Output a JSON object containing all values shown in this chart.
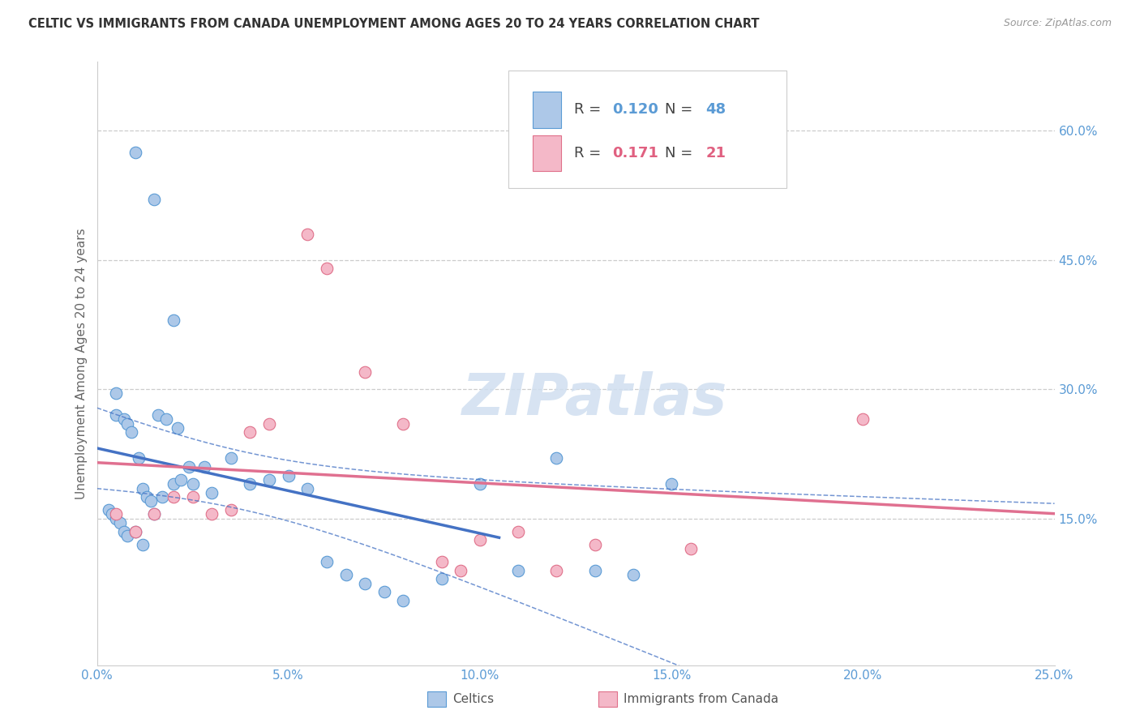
{
  "title": "CELTIC VS IMMIGRANTS FROM CANADA UNEMPLOYMENT AMONG AGES 20 TO 24 YEARS CORRELATION CHART",
  "source": "Source: ZipAtlas.com",
  "ylabel": "Unemployment Among Ages 20 to 24 years",
  "xlim": [
    0.0,
    0.25
  ],
  "ylim": [
    -0.02,
    0.68
  ],
  "xtick_labels": [
    "0.0%",
    "5.0%",
    "10.0%",
    "15.0%",
    "20.0%",
    "25.0%"
  ],
  "xtick_vals": [
    0.0,
    0.05,
    0.1,
    0.15,
    0.2,
    0.25
  ],
  "ytick_labels": [
    "15.0%",
    "30.0%",
    "45.0%",
    "60.0%"
  ],
  "ytick_vals": [
    0.15,
    0.3,
    0.45,
    0.6
  ],
  "grid_color": "#cccccc",
  "background_color": "#ffffff",
  "celtics_color": "#adc8e8",
  "celtics_edge_color": "#5b9bd5",
  "immigrants_color": "#f4b8c8",
  "immigrants_edge_color": "#e0708a",
  "celtics_line_color": "#4472c4",
  "immigrants_line_color": "#e07090",
  "celtics_R": 0.12,
  "celtics_N": 48,
  "immigrants_R": 0.171,
  "immigrants_N": 21,
  "celtics_x": [
    0.01,
    0.015,
    0.02,
    0.005,
    0.005,
    0.007,
    0.008,
    0.009,
    0.011,
    0.012,
    0.013,
    0.014,
    0.016,
    0.018,
    0.021,
    0.024,
    0.003,
    0.004,
    0.005,
    0.006,
    0.007,
    0.008,
    0.01,
    0.012,
    0.015,
    0.017,
    0.02,
    0.022,
    0.025,
    0.028,
    0.03,
    0.035,
    0.04,
    0.045,
    0.05,
    0.055,
    0.06,
    0.065,
    0.07,
    0.075,
    0.08,
    0.09,
    0.1,
    0.11,
    0.12,
    0.13,
    0.14,
    0.15
  ],
  "celtics_y": [
    0.575,
    0.52,
    0.38,
    0.295,
    0.27,
    0.265,
    0.26,
    0.25,
    0.22,
    0.185,
    0.175,
    0.17,
    0.27,
    0.265,
    0.255,
    0.21,
    0.16,
    0.155,
    0.15,
    0.145,
    0.135,
    0.13,
    0.135,
    0.12,
    0.155,
    0.175,
    0.19,
    0.195,
    0.19,
    0.21,
    0.18,
    0.22,
    0.19,
    0.195,
    0.2,
    0.185,
    0.1,
    0.085,
    0.075,
    0.065,
    0.055,
    0.08,
    0.19,
    0.09,
    0.22,
    0.09,
    0.085,
    0.19
  ],
  "immigrants_x": [
    0.005,
    0.01,
    0.015,
    0.02,
    0.025,
    0.03,
    0.035,
    0.04,
    0.045,
    0.055,
    0.06,
    0.07,
    0.08,
    0.09,
    0.095,
    0.1,
    0.11,
    0.12,
    0.13,
    0.155,
    0.2
  ],
  "immigrants_y": [
    0.155,
    0.135,
    0.155,
    0.175,
    0.175,
    0.155,
    0.16,
    0.25,
    0.26,
    0.48,
    0.44,
    0.32,
    0.26,
    0.1,
    0.09,
    0.125,
    0.135,
    0.09,
    0.12,
    0.115,
    0.265
  ],
  "watermark_text": "ZIPatlas",
  "watermark_color": "#d0dff0",
  "celtics_conf": true
}
